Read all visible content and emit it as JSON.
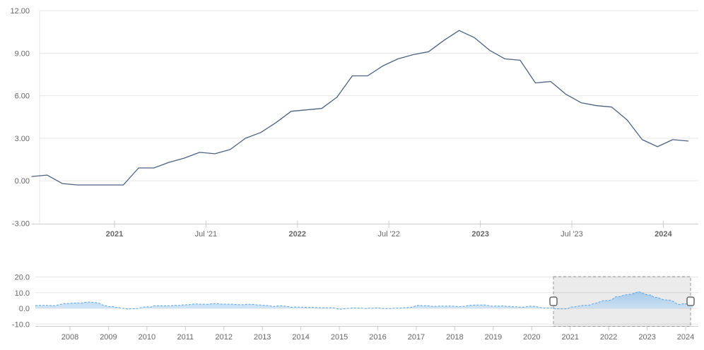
{
  "colors": {
    "background": "#ffffff",
    "main_line": "#4d6281",
    "nav_line": "#58a5e3",
    "nav_fill_top": "#7db4e6",
    "nav_fill_bottom": "#ecf5fc",
    "grid": "#e6e6e6",
    "axis": "#cccccc",
    "label": "#666666",
    "selection_fill": "rgba(0,0,0,0.08)",
    "selection_border": "#999999",
    "handle_fill": "#ffffff",
    "handle_border": "#666666"
  },
  "chart_data": [
    {
      "type": "line",
      "name": "main-chart",
      "title": "",
      "xlabel": "",
      "ylabel": "",
      "grid": true,
      "ylim": [
        -3.75,
        12.6
      ],
      "y_ticks": [
        {
          "label": "12.00",
          "value": 12
        },
        {
          "label": "9.00",
          "value": 9
        },
        {
          "label": "6.00",
          "value": 6
        },
        {
          "label": "3.00",
          "value": 3
        },
        {
          "label": "0.00",
          "value": 0
        },
        {
          "label": "-3.00",
          "value": -3
        }
      ],
      "x_ticks": [
        {
          "label": "2021",
          "bold": true
        },
        {
          "label": "Jul '21",
          "bold": false
        },
        {
          "label": "2022",
          "bold": true
        },
        {
          "label": "Jul '22",
          "bold": false
        },
        {
          "label": "2023",
          "bold": true
        },
        {
          "label": "Jul '23",
          "bold": false
        },
        {
          "label": "2024",
          "bold": true
        }
      ],
      "series": [
        {
          "name": "inflation-rate-yoy-percent",
          "interval": "monthly",
          "x_start": "2020-06",
          "x_end": "2024-01",
          "values": [
            0.3,
            0.4,
            -0.2,
            -0.3,
            -0.3,
            -0.3,
            -0.3,
            0.9,
            0.9,
            1.3,
            1.6,
            2.0,
            1.9,
            2.2,
            3.0,
            3.4,
            4.1,
            4.9,
            5.0,
            5.1,
            5.9,
            7.4,
            7.4,
            8.1,
            8.6,
            8.9,
            9.1,
            9.9,
            10.6,
            10.1,
            9.2,
            8.6,
            8.5,
            6.9,
            7.0,
            6.1,
            5.5,
            5.3,
            5.2,
            4.3,
            2.9,
            2.4,
            2.9,
            2.8
          ]
        }
      ]
    },
    {
      "type": "area",
      "name": "navigator",
      "title": "",
      "grid": true,
      "ylim": [
        -11.5,
        20.2
      ],
      "y_ticks": [
        {
          "label": "20.0",
          "value": 20
        },
        {
          "label": "10.0",
          "value": 10
        },
        {
          "label": "0.0",
          "value": 0
        },
        {
          "label": "-10.0",
          "value": -10
        }
      ],
      "x_ticks": [
        {
          "label": "2008"
        },
        {
          "label": "2009"
        },
        {
          "label": "2010"
        },
        {
          "label": "2011"
        },
        {
          "label": "2012"
        },
        {
          "label": "2013"
        },
        {
          "label": "2014"
        },
        {
          "label": "2015"
        },
        {
          "label": "2016"
        },
        {
          "label": "2017"
        },
        {
          "label": "2018"
        },
        {
          "label": "2019"
        },
        {
          "label": "2020"
        },
        {
          "label": "2021"
        },
        {
          "label": "2022"
        },
        {
          "label": "2023"
        },
        {
          "label": "2024"
        }
      ],
      "selection": {
        "start": "2020-07",
        "end": "2024-02"
      },
      "series": [
        {
          "name": "inflation-rate-yoy-percent-full-history",
          "interval": "monthly",
          "x_start": "2007-02",
          "x_end": "2024-03",
          "values": [
            1.8,
            1.9,
            1.9,
            1.9,
            1.9,
            1.8,
            1.7,
            2.1,
            2.6,
            3.1,
            3.1,
            3.2,
            3.3,
            3.6,
            3.3,
            3.7,
            4.0,
            4.0,
            3.8,
            3.6,
            3.2,
            2.1,
            1.6,
            1.1,
            1.2,
            0.6,
            0.6,
            0.0,
            -0.1,
            -0.6,
            -0.2,
            -0.3,
            -0.1,
            0.5,
            0.9,
            1.0,
            0.8,
            1.6,
            1.6,
            1.7,
            1.5,
            1.7,
            1.6,
            1.9,
            1.9,
            1.9,
            2.2,
            2.3,
            2.4,
            2.7,
            2.8,
            2.7,
            2.7,
            2.6,
            2.5,
            3.0,
            3.0,
            3.0,
            2.7,
            2.7,
            2.7,
            2.7,
            2.6,
            2.4,
            2.4,
            2.4,
            2.6,
            2.6,
            2.5,
            2.2,
            2.2,
            2.0,
            1.9,
            1.7,
            1.2,
            1.4,
            1.6,
            1.6,
            1.3,
            1.1,
            0.7,
            0.9,
            0.8,
            0.8,
            0.7,
            0.5,
            0.7,
            0.5,
            0.5,
            0.4,
            0.4,
            0.3,
            0.4,
            0.3,
            -0.2,
            -0.6,
            -0.3,
            -0.1,
            0.0,
            0.3,
            0.2,
            0.2,
            0.1,
            -0.1,
            0.1,
            0.1,
            0.2,
            0.3,
            -0.2,
            0.0,
            -0.2,
            -0.1,
            0.1,
            0.2,
            0.2,
            0.4,
            0.5,
            0.6,
            1.1,
            1.8,
            2.0,
            1.5,
            1.9,
            1.4,
            1.3,
            1.3,
            1.5,
            1.5,
            1.4,
            1.5,
            1.4,
            1.3,
            1.1,
            1.3,
            1.3,
            1.9,
            2.0,
            2.1,
            2.1,
            2.1,
            2.2,
            1.9,
            1.5,
            1.4,
            1.5,
            1.4,
            1.7,
            1.2,
            1.3,
            1.0,
            1.0,
            0.8,
            0.7,
            1.0,
            1.3,
            1.4,
            1.2,
            0.7,
            0.3,
            0.1,
            0.3,
            0.4,
            -0.2,
            -0.3,
            -0.3,
            -0.3,
            -0.3,
            0.9,
            0.9,
            1.3,
            1.6,
            2.0,
            1.9,
            2.2,
            3.0,
            3.4,
            4.1,
            4.9,
            5.0,
            5.1,
            5.9,
            7.4,
            7.4,
            8.1,
            8.6,
            8.9,
            9.1,
            9.9,
            10.6,
            10.1,
            9.2,
            8.6,
            8.5,
            6.9,
            7.0,
            6.1,
            5.5,
            5.3,
            5.2,
            4.3,
            2.9,
            2.4,
            2.9,
            2.8,
            2.6,
            2.4
          ]
        }
      ]
    }
  ]
}
